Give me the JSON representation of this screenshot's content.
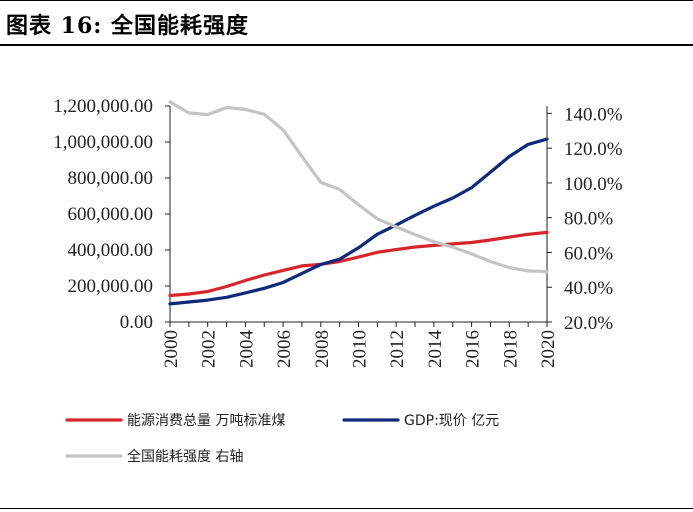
{
  "figure": {
    "title": "图表 16:  全国能耗强度"
  },
  "chart_data": {
    "type": "line",
    "title": "",
    "x": [
      2000,
      2001,
      2002,
      2003,
      2004,
      2005,
      2006,
      2007,
      2008,
      2009,
      2010,
      2011,
      2012,
      2013,
      2014,
      2015,
      2016,
      2017,
      2018,
      2019,
      2020
    ],
    "x_tick_labels": [
      "2000",
      "2002",
      "2004",
      "2006",
      "2008",
      "2010",
      "2012",
      "2014",
      "2016",
      "2018",
      "2020"
    ],
    "left_axis": {
      "ylim": [
        0,
        1200000
      ],
      "tick_values": [
        0,
        200000,
        400000,
        600000,
        800000,
        1000000,
        1200000
      ],
      "tick_labels": [
        "0.00",
        "200,000.00",
        "400,000.00",
        "600,000.00",
        "800,000.00",
        "1,000,000.00",
        "1,200,000.00"
      ]
    },
    "right_axis": {
      "ylim": [
        20,
        150
      ],
      "tick_values": [
        20,
        40,
        60,
        80,
        100,
        120,
        140
      ],
      "tick_labels": [
        "20.0%",
        "40.0%",
        "60.0%",
        "80.0%",
        "100.0%",
        "120.0%",
        "140.0%"
      ]
    },
    "series": [
      {
        "name": "能源消费总量 万吨标准煤",
        "axis": "left",
        "color": "#d7262b",
        "values": [
          146964,
          155547,
          169577,
          197083,
          230281,
          261369,
          286467,
          311442,
          320611,
          336126,
          360648,
          387043,
          402138,
          416913,
          425806,
          434113,
          441492,
          455827,
          471925,
          487488,
          498000
        ]
      },
      {
        "name": "GDP:现价 亿元",
        "axis": "left",
        "color": "#0e2a7b",
        "values": [
          100280,
          110863,
          121717,
          137422,
          161840,
          187319,
          219438,
          270232,
          319516,
          349081,
          412119,
          487940,
          538580,
          592963,
          643563,
          688858,
          746395,
          832036,
          919281,
          986515,
          1015986
        ]
      },
      {
        "name": "全国能耗强度 右轴",
        "axis": "right",
        "color": "#c4c4c4",
        "values": [
          146.6,
          140.3,
          139.3,
          143.4,
          142.3,
          139.5,
          130.5,
          115.3,
          100.3,
          96.3,
          87.5,
          79.3,
          74.7,
          70.3,
          66.2,
          63.0,
          59.2,
          54.8,
          51.3,
          49.4,
          49.0
        ]
      }
    ],
    "grid": false,
    "legend": {
      "placement": "bottom"
    }
  }
}
